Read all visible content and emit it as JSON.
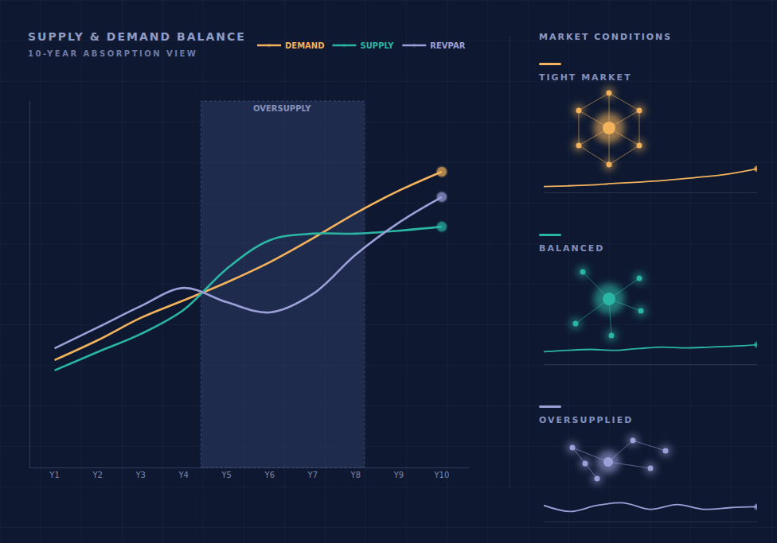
{
  "chart_data": [
    {
      "type": "line",
      "title": "SUPPLY & DEMAND BALANCE",
      "subtitle": "10-YEAR ABSORPTION VIEW",
      "categories": [
        "Y1",
        "Y2",
        "Y3",
        "Y4",
        "Y5",
        "Y6",
        "Y7",
        "Y8",
        "Y9",
        "Y10"
      ],
      "series": [
        {
          "name": "DEMAND",
          "color": "#f2b35c",
          "values": [
            29.3,
            34.7,
            40.8,
            45.6,
            50.5,
            56.0,
            62.5,
            69.4,
            75.5,
            80.7
          ]
        },
        {
          "name": "SUPPLY",
          "color": "#2bb5a3",
          "values": [
            26.5,
            31.5,
            36.4,
            43.0,
            54.2,
            62.0,
            63.8,
            63.8,
            64.6,
            65.7
          ]
        },
        {
          "name": "REVPAR",
          "color": "#9ca0d8",
          "values": [
            32.5,
            38.2,
            44.0,
            49.0,
            45.1,
            42.3,
            47.3,
            58.1,
            66.8,
            73.8
          ]
        }
      ],
      "ylim": [
        0,
        100
      ],
      "tick_labels": "x",
      "legend": "top",
      "marker": "end",
      "line_style": "smooth",
      "annotations": [
        {
          "text": "OVERSUPPLY",
          "x0": 3.4,
          "x1": 7.2
        }
      ]
    },
    {
      "type": "line",
      "title": "TIGHT MARKET",
      "color": "#f2b35c",
      "x": [
        1,
        2,
        3,
        4,
        5,
        6,
        7,
        8,
        9,
        10
      ],
      "values": [
        19,
        21,
        24,
        29,
        33,
        38,
        45,
        52,
        62,
        76
      ],
      "xlim": [
        1,
        10
      ],
      "ylim": [
        0,
        100
      ],
      "tick_labels": false,
      "marker": "end",
      "line_style": "smooth"
    },
    {
      "type": "line",
      "title": "BALANCED",
      "color": "#2bb5a3",
      "x": [
        1,
        2,
        3,
        4,
        5,
        6,
        7,
        8,
        9,
        10
      ],
      "values": [
        42,
        47,
        50,
        47,
        53,
        58,
        55,
        58,
        61,
        66
      ],
      "xlim": [
        1,
        10
      ],
      "ylim": [
        0,
        100
      ],
      "tick_labels": false,
      "marker": "end",
      "line_style": "smooth"
    },
    {
      "type": "line",
      "title": "OVERSUPPLIED",
      "color": "#9ca0d8",
      "x": [
        1,
        2,
        3,
        4,
        5,
        6,
        7,
        8,
        9
      ],
      "values": [
        58,
        36,
        58,
        67,
        44,
        61,
        44,
        50,
        53
      ],
      "xlim": [
        1,
        9
      ],
      "ylim": [
        0,
        100
      ],
      "tick_labels": false,
      "marker": "end",
      "line_style": "smooth"
    }
  ],
  "panel_title": "MARKET CONDITIONS"
}
